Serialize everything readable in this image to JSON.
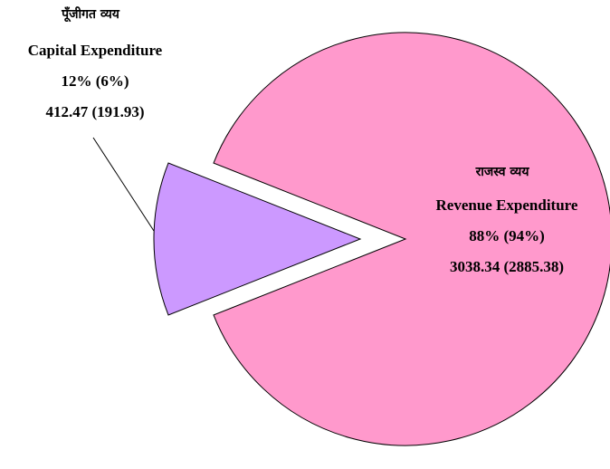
{
  "chart_data": {
    "type": "pie",
    "categories": [
      "Revenue Expenditure",
      "Capital Expenditure"
    ],
    "categories_hindi": [
      "राजस्व व्यय",
      "पूँजीगत व्यय"
    ],
    "values": [
      88,
      12
    ],
    "value_labels": [
      "88% (94%)",
      "12% (6%)"
    ],
    "amounts": [
      "3038.34 (2885.38)",
      "412.47 (191.93)"
    ],
    "colors": [
      "#ff99cc",
      "#cc99ff"
    ]
  }
}
